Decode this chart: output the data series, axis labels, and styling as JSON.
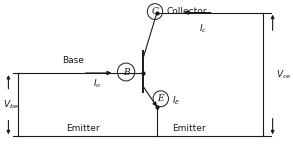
{
  "bg_color": "#ffffff",
  "line_color": "#1a1a1a",
  "figsize": [
    2.93,
    1.45
  ],
  "dpi": 100,
  "labels": {
    "collector": "Collector",
    "base": "Base",
    "emitter1": "Emitter",
    "emitter2": "Emitter",
    "Vbe": "$V_{be}$",
    "Vce": "$V_{ce}$",
    "Ic": "$I_c$",
    "Ib": "$I_o$",
    "IE": "$I_E$",
    "B": "B",
    "C": "C",
    "E": "E"
  }
}
